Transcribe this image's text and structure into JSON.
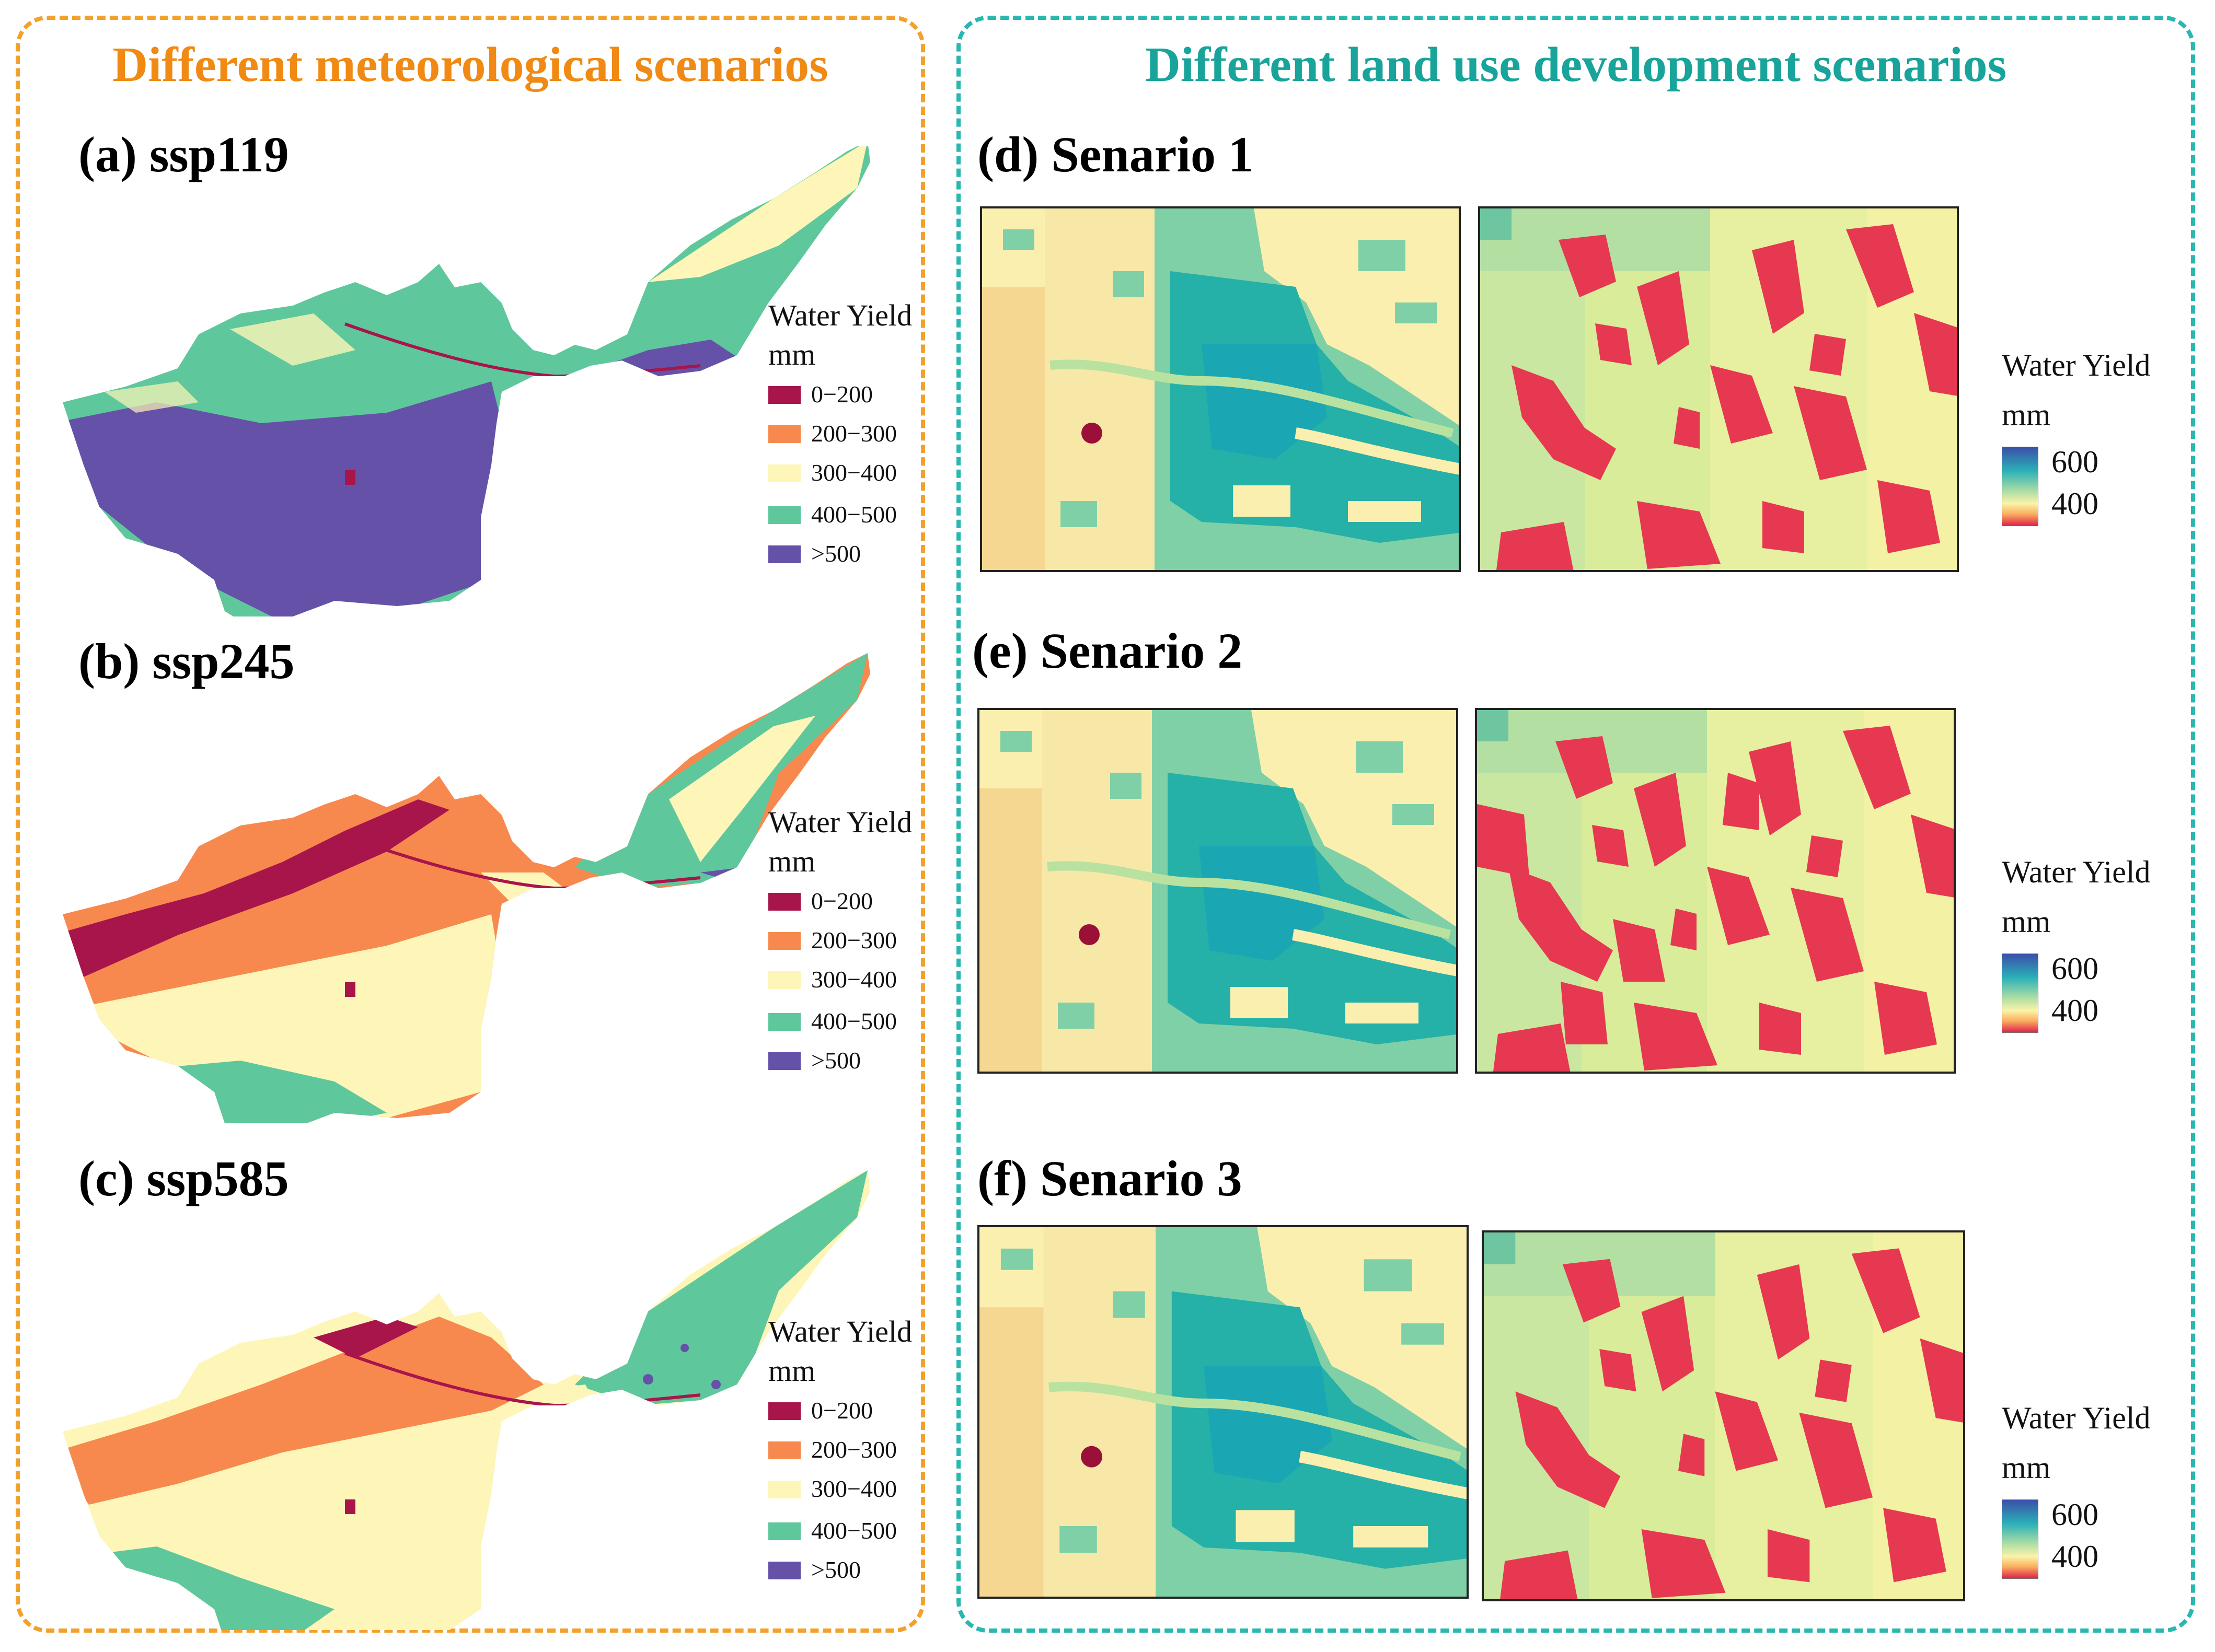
{
  "left_title": "Different meteorological scenarios",
  "right_title": "Different land use development scenarios",
  "colors": {
    "left_frame": "#f2a12c",
    "right_frame": "#29b7b0",
    "class_0_200": "#a8154b",
    "class_200_300": "#f7894f",
    "class_300_400": "#fdf6b8",
    "class_400_500": "#5fc79c",
    "class_gt_500": "#6552a8"
  },
  "class_legend": {
    "title": "Water Yield",
    "unit": "mm",
    "items": [
      {
        "label": "0−200",
        "color": "#a8154b"
      },
      {
        "label": "200−300",
        "color": "#f7894f"
      },
      {
        "label": "300−400",
        "color": "#fdf6b8"
      },
      {
        "label": "400−500",
        "color": "#5fc79c"
      },
      {
        "label": ">500",
        "color": "#6552a8"
      }
    ]
  },
  "gradient_legend": {
    "title": "Water Yield",
    "unit": "mm",
    "max_label": "600",
    "min_label": "400"
  },
  "climate_panels": [
    {
      "label": "(a) ssp119",
      "dominant": "mostly >500 and 400−500"
    },
    {
      "label": "(b) ssp245",
      "dominant": "mostly 200−300 and 300−400"
    },
    {
      "label": "(c) ssp585",
      "dominant": "mostly 200−300 and 300−400"
    }
  ],
  "landuse_panels": [
    {
      "label": "(d) Senario 1"
    },
    {
      "label": "(e) Senario 2"
    },
    {
      "label": "(f) Senario 3"
    }
  ]
}
